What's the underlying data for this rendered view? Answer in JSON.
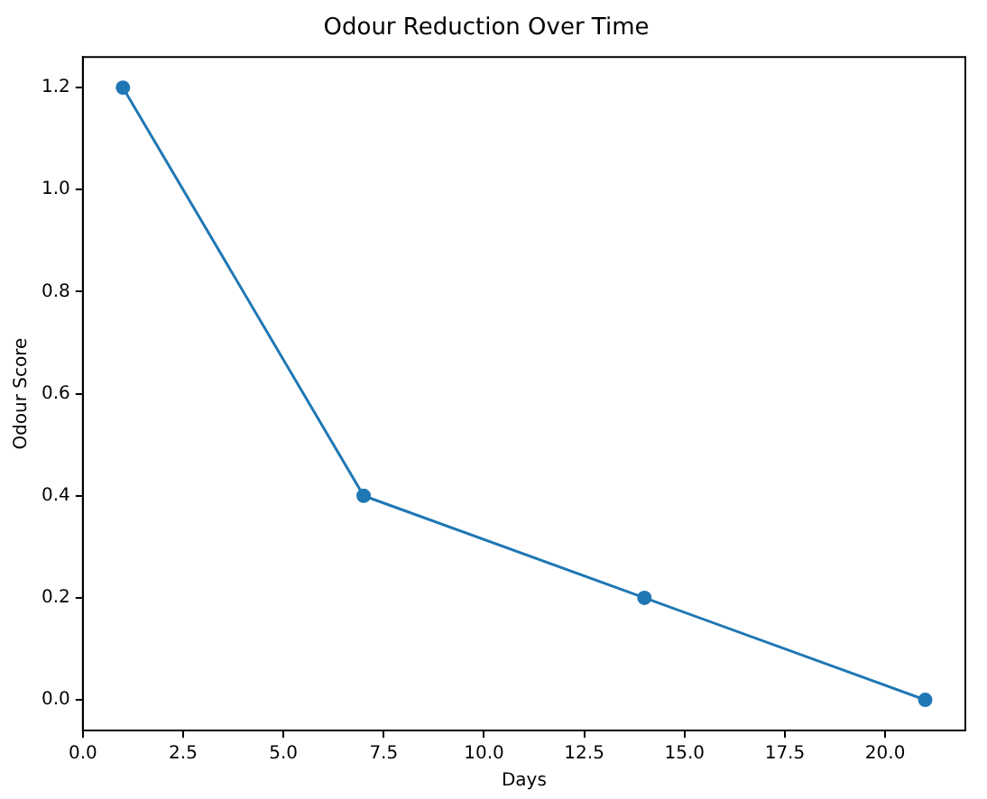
{
  "chart_data": {
    "type": "line",
    "title": "Odour Reduction Over Time",
    "xlabel": "Days",
    "ylabel": "Odour Score",
    "x": [
      1,
      7,
      14,
      21
    ],
    "series": [
      {
        "color": "#1f77b4",
        "values": [
          1.2,
          0.4,
          0.2,
          0.0
        ]
      }
    ],
    "xlim": [
      0,
      22
    ],
    "xticks": [
      {
        "value": 0,
        "label": "0.0"
      },
      {
        "value": 2.5,
        "label": "2.5"
      },
      {
        "value": 5,
        "label": "5.0"
      },
      {
        "value": 7.5,
        "label": "7.5"
      },
      {
        "value": 10,
        "label": "10.0"
      },
      {
        "value": 12.5,
        "label": "12.5"
      },
      {
        "value": 15,
        "label": "15.0"
      },
      {
        "value": 17.5,
        "label": "17.5"
      },
      {
        "value": 20,
        "label": "20.0"
      }
    ],
    "ylim": [
      -0.06,
      1.26
    ],
    "yticks": [
      {
        "value": 0,
        "label": "0.0"
      },
      {
        "value": 0.2,
        "label": "0.2"
      },
      {
        "value": 0.4,
        "label": "0.4"
      },
      {
        "value": 0.6,
        "label": "0.6"
      },
      {
        "value": 0.8,
        "label": "0.8"
      },
      {
        "value": 1.0,
        "label": "1.0"
      },
      {
        "value": 1.2,
        "label": "1.2"
      }
    ],
    "grid": false,
    "legend": false,
    "marker": "circle",
    "line_style": "solid"
  }
}
